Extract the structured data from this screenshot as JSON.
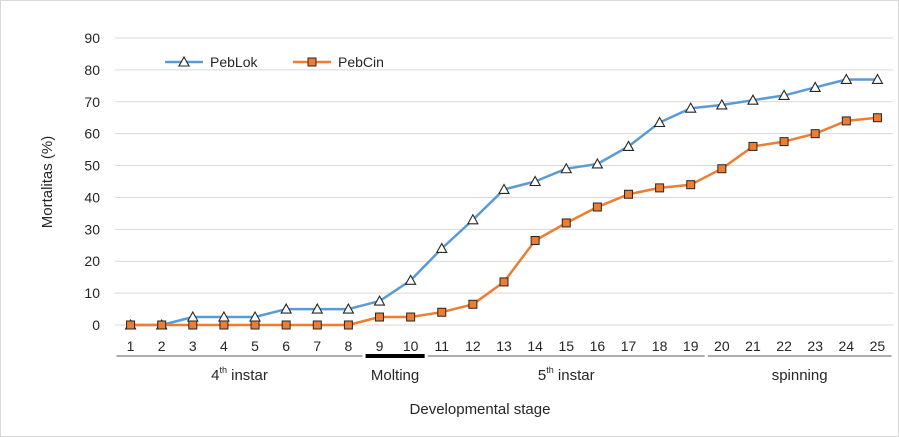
{
  "chart_data": {
    "type": "line",
    "title": "",
    "xlabel": "Developmental stage",
    "ylabel": "Mortalitas (%)",
    "x": [
      1,
      2,
      3,
      4,
      5,
      6,
      7,
      8,
      9,
      10,
      11,
      12,
      13,
      14,
      15,
      16,
      17,
      18,
      19,
      20,
      21,
      22,
      23,
      24,
      25
    ],
    "ylim": [
      0,
      90
    ],
    "yticks": [
      0,
      10,
      20,
      30,
      40,
      50,
      60,
      70,
      80,
      90
    ],
    "grid": "horizontal",
    "legend": "top-left",
    "series": [
      {
        "name": "PebLok",
        "color": "#5b9bd5",
        "marker": "triangle",
        "values": [
          0,
          0,
          2.5,
          2.5,
          2.5,
          5,
          5,
          5,
          7.5,
          14,
          24,
          33,
          42.5,
          45,
          49,
          50.5,
          56,
          63.5,
          68,
          69,
          70.5,
          72,
          74.5,
          77,
          77
        ]
      },
      {
        "name": "PebCin",
        "color": "#ed7d31",
        "marker": "square",
        "values": [
          0,
          0,
          0,
          0,
          0,
          0,
          0,
          0,
          2.5,
          2.5,
          4,
          6.5,
          13.5,
          26.5,
          32,
          37,
          41,
          43,
          44,
          49,
          56,
          57.5,
          60,
          64,
          65
        ]
      }
    ],
    "stages": [
      {
        "main": "4",
        "sup": "th",
        "rest": " instar",
        "from": 1,
        "to": 8,
        "bold": false
      },
      {
        "main": "Molting",
        "sup": "",
        "rest": "",
        "from": 9,
        "to": 10,
        "bold": true
      },
      {
        "main": "5",
        "sup": "th",
        "rest": " instar",
        "from": 11,
        "to": 19,
        "bold": false
      },
      {
        "main": "spinning",
        "sup": "",
        "rest": "",
        "from": 20,
        "to": 25,
        "bold": false
      }
    ]
  }
}
